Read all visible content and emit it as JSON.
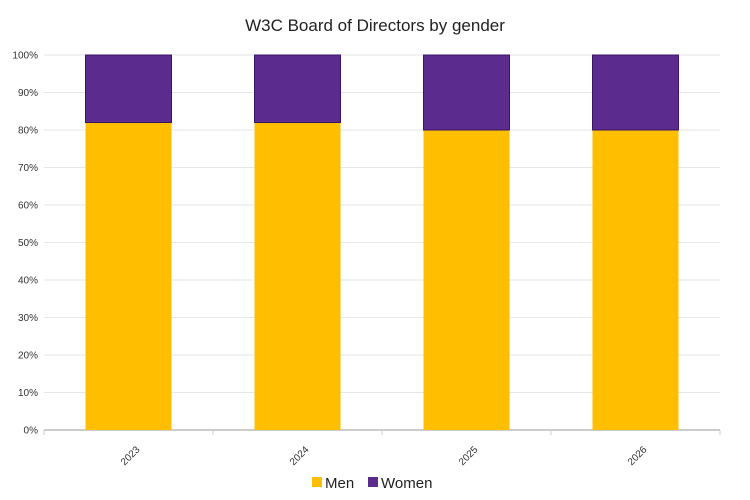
{
  "chart_data": {
    "type": "bar",
    "stacked": true,
    "title": "W3C Board of Directors by gender",
    "xlabel": "",
    "ylabel": "",
    "categories": [
      "2023",
      "2024",
      "2025",
      "2026"
    ],
    "series": [
      {
        "name": "Men",
        "color": "#FFBF00",
        "values": [
          82,
          82,
          80,
          80
        ]
      },
      {
        "name": "Women",
        "color": "#5B2C8E",
        "values": [
          18,
          18,
          20,
          20
        ]
      }
    ],
    "ylim": [
      0,
      100
    ],
    "yticks": [
      "0%",
      "10%",
      "20%",
      "30%",
      "40%",
      "50%",
      "60%",
      "70%",
      "80%",
      "90%",
      "100%"
    ],
    "grid": true,
    "legend_position": "bottom"
  }
}
